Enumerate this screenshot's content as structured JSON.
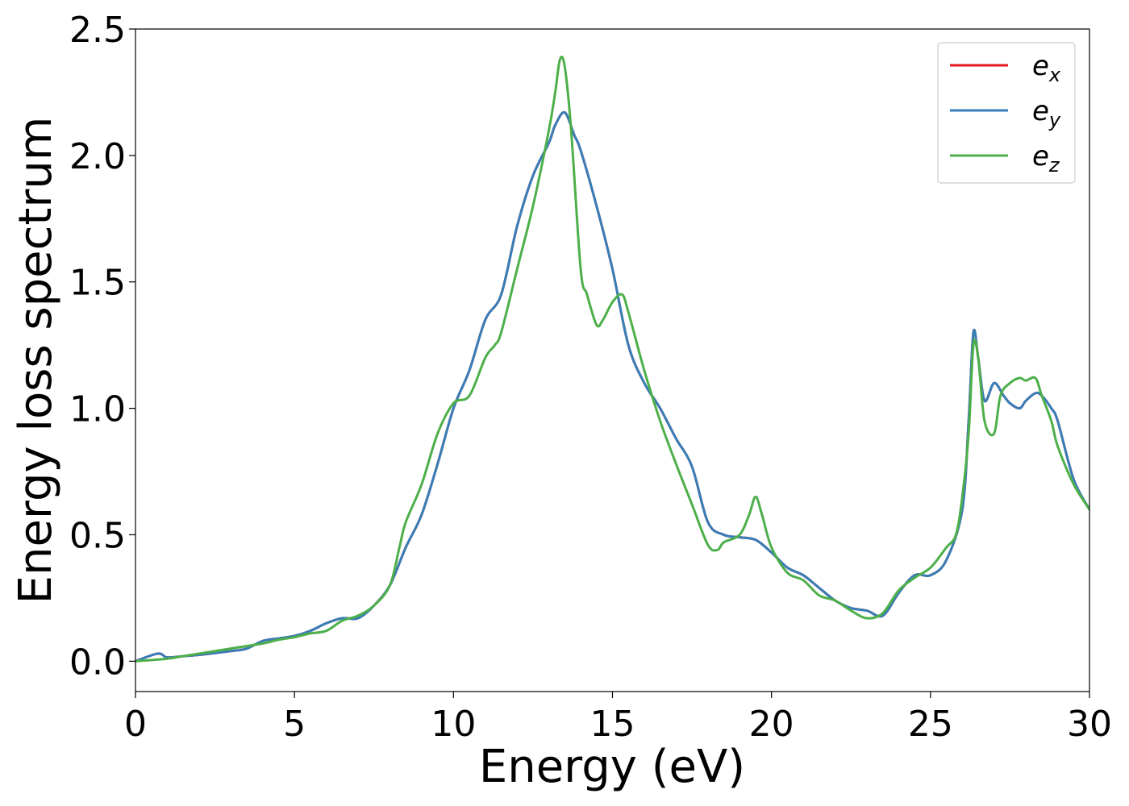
{
  "chart_data": {
    "type": "line",
    "xlabel": "Energy (eV)",
    "ylabel": "Energy loss spectrum",
    "xlim": [
      0,
      30
    ],
    "ylim": [
      -0.12,
      2.5
    ],
    "xticks": [
      0,
      5,
      10,
      15,
      20,
      25,
      30
    ],
    "xtick_labels": [
      "0",
      "5",
      "10",
      "15",
      "20",
      "25",
      "30"
    ],
    "yticks": [
      0.0,
      0.5,
      1.0,
      1.5,
      2.0,
      2.5
    ],
    "ytick_labels": [
      "0.0",
      "0.5",
      "1.0",
      "1.5",
      "2.0",
      "2.5"
    ],
    "grid": false,
    "legend_position": "top-right",
    "series": [
      {
        "name": "e_x",
        "label_main": "e",
        "label_sub": "x",
        "color": "#e41a1c",
        "x": [
          0,
          0.7,
          1.0,
          1.5,
          2,
          3,
          3.5,
          4,
          4.5,
          5,
          5.5,
          6,
          6.5,
          7,
          7.5,
          8,
          8.5,
          9,
          9.5,
          10,
          10.5,
          11,
          11.5,
          12,
          12.5,
          13,
          13.2,
          13.5,
          13.8,
          14,
          14.5,
          15,
          15.5,
          16,
          16.5,
          17,
          17.5,
          18,
          18.5,
          19,
          19.5,
          20,
          20.5,
          21,
          21.5,
          22,
          22.5,
          23,
          23.5,
          24,
          24.5,
          25,
          25.5,
          26,
          26.2,
          26.35,
          26.5,
          26.7,
          27,
          27.3,
          27.5,
          27.8,
          28,
          28.3,
          28.5,
          28.8,
          29,
          29.5,
          30
        ],
        "y": [
          0.0,
          0.03,
          0.015,
          0.02,
          0.025,
          0.04,
          0.05,
          0.08,
          0.09,
          0.1,
          0.12,
          0.15,
          0.17,
          0.17,
          0.22,
          0.3,
          0.45,
          0.58,
          0.78,
          1.0,
          1.15,
          1.35,
          1.45,
          1.72,
          1.92,
          2.05,
          2.12,
          2.17,
          2.08,
          2.02,
          1.8,
          1.55,
          1.25,
          1.1,
          1.0,
          0.88,
          0.77,
          0.55,
          0.5,
          0.49,
          0.48,
          0.43,
          0.37,
          0.34,
          0.29,
          0.24,
          0.21,
          0.2,
          0.18,
          0.27,
          0.34,
          0.34,
          0.4,
          0.6,
          0.95,
          1.3,
          1.2,
          1.03,
          1.1,
          1.05,
          1.02,
          1.0,
          1.03,
          1.06,
          1.05,
          1.0,
          0.95,
          0.72,
          0.6
        ]
      },
      {
        "name": "e_y",
        "label_main": "e",
        "label_sub": "y",
        "color": "#377eb8",
        "x": [
          0,
          0.7,
          1.0,
          1.5,
          2,
          3,
          3.5,
          4,
          4.5,
          5,
          5.5,
          6,
          6.5,
          7,
          7.5,
          8,
          8.5,
          9,
          9.5,
          10,
          10.5,
          11,
          11.5,
          12,
          12.5,
          13,
          13.2,
          13.5,
          13.8,
          14,
          14.5,
          15,
          15.5,
          16,
          16.5,
          17,
          17.5,
          18,
          18.5,
          19,
          19.5,
          20,
          20.5,
          21,
          21.5,
          22,
          22.5,
          23,
          23.5,
          24,
          24.5,
          25,
          25.5,
          26,
          26.2,
          26.35,
          26.5,
          26.7,
          27,
          27.3,
          27.5,
          27.8,
          28,
          28.3,
          28.5,
          28.8,
          29,
          29.5,
          30
        ],
        "y": [
          0.0,
          0.03,
          0.015,
          0.02,
          0.025,
          0.04,
          0.05,
          0.08,
          0.09,
          0.1,
          0.12,
          0.15,
          0.17,
          0.17,
          0.22,
          0.3,
          0.45,
          0.58,
          0.78,
          1.0,
          1.15,
          1.35,
          1.45,
          1.72,
          1.92,
          2.05,
          2.12,
          2.17,
          2.08,
          2.02,
          1.8,
          1.55,
          1.25,
          1.1,
          1.0,
          0.88,
          0.77,
          0.55,
          0.5,
          0.49,
          0.48,
          0.43,
          0.37,
          0.34,
          0.29,
          0.24,
          0.21,
          0.2,
          0.18,
          0.27,
          0.34,
          0.34,
          0.4,
          0.6,
          0.95,
          1.3,
          1.2,
          1.03,
          1.1,
          1.05,
          1.02,
          1.0,
          1.03,
          1.06,
          1.05,
          1.0,
          0.95,
          0.72,
          0.6
        ]
      },
      {
        "name": "e_z",
        "label_main": "e",
        "label_sub": "z",
        "color": "#4daf4a",
        "x": [
          0,
          1,
          1.5,
          2,
          3,
          4,
          4.5,
          5,
          5.5,
          6,
          6.5,
          7,
          7.5,
          8,
          8.3,
          8.5,
          9,
          9.5,
          10,
          10.5,
          11,
          11.3,
          11.5,
          12,
          12.5,
          13,
          13.2,
          13.35,
          13.5,
          13.7,
          14,
          14.2,
          14.5,
          14.7,
          15,
          15.3,
          15.5,
          16,
          16.5,
          17,
          17.5,
          18,
          18.3,
          18.5,
          19,
          19.3,
          19.5,
          19.7,
          20,
          20.5,
          21,
          21.5,
          22,
          22.5,
          23,
          23.5,
          24,
          24.5,
          25,
          25.5,
          25.8,
          26,
          26.2,
          26.35,
          26.5,
          26.7,
          27,
          27.2,
          27.5,
          27.8,
          28,
          28.3,
          28.5,
          28.8,
          29,
          29.5,
          30
        ],
        "y": [
          0.0,
          0.01,
          0.02,
          0.03,
          0.05,
          0.07,
          0.085,
          0.095,
          0.11,
          0.12,
          0.16,
          0.18,
          0.22,
          0.3,
          0.45,
          0.55,
          0.7,
          0.9,
          1.02,
          1.05,
          1.2,
          1.25,
          1.3,
          1.55,
          1.8,
          2.1,
          2.25,
          2.38,
          2.35,
          2.1,
          1.55,
          1.45,
          1.33,
          1.35,
          1.42,
          1.45,
          1.38,
          1.15,
          0.95,
          0.78,
          0.62,
          0.46,
          0.44,
          0.47,
          0.5,
          0.58,
          0.65,
          0.58,
          0.45,
          0.35,
          0.32,
          0.26,
          0.24,
          0.2,
          0.17,
          0.19,
          0.28,
          0.33,
          0.37,
          0.45,
          0.5,
          0.65,
          0.9,
          1.25,
          1.2,
          0.95,
          0.9,
          1.05,
          1.1,
          1.12,
          1.11,
          1.12,
          1.05,
          0.95,
          0.85,
          0.7,
          0.6
        ]
      }
    ]
  }
}
